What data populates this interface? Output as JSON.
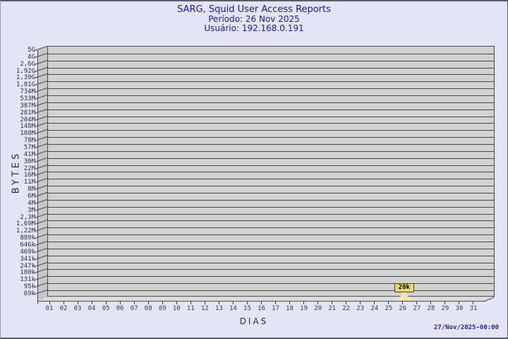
{
  "header": {
    "title": "SARG, Squid User Access Reports",
    "period_label": "Período: 26 Nov 2025",
    "user_label": "Usuário: 192.168.0.191"
  },
  "footer": {
    "timestamp": "27/Nov/2025-00:00"
  },
  "chart_data": {
    "type": "bar",
    "title": "SARG, Squid User Access Reports",
    "period": "26 Nov 2025",
    "user": "192.168.0.191",
    "xlabel": "DIAS",
    "ylabel": "BYTES",
    "y_scale": "log",
    "grid": "on",
    "y_tick_labels": [
      "5G",
      "4G",
      "2,6G",
      "1,92G",
      "1,39G",
      "1,01G",
      "734M",
      "533M",
      "387M",
      "281M",
      "204M",
      "148M",
      "108M",
      "78M",
      "57M",
      "41M",
      "30M",
      "22M",
      "16M",
      "11M",
      "8M",
      "6M",
      "4M",
      "3M",
      "2,3M",
      "1,69M",
      "1,22M",
      "889k",
      "646k",
      "469k",
      "341k",
      "247k",
      "180k",
      "131k",
      "95k",
      "69k"
    ],
    "x_tick_labels": [
      "01",
      "02",
      "03",
      "04",
      "05",
      "06",
      "07",
      "08",
      "09",
      "10",
      "11",
      "12",
      "13",
      "14",
      "15",
      "16",
      "17",
      "18",
      "19",
      "20",
      "21",
      "22",
      "23",
      "24",
      "25",
      "26",
      "27",
      "28",
      "29",
      "30",
      "31"
    ],
    "points": [
      {
        "day": "26",
        "value_label": "20k",
        "bytes": 20000
      }
    ]
  },
  "colors": {
    "background": "#e4e4f6",
    "title_text": "#1b1b9b",
    "plot_stripe": "#d2d2d2",
    "grid_line": "#4a4a4a",
    "wall": "#c6c6c6",
    "floor": "#dcdcdc",
    "bar_fill": "#f2e6ab",
    "label_box_bg": "#e8d96e",
    "label_box_border": "#554400",
    "timestamp_text": "#2323bd",
    "axis_text": "#2e2e2e"
  }
}
